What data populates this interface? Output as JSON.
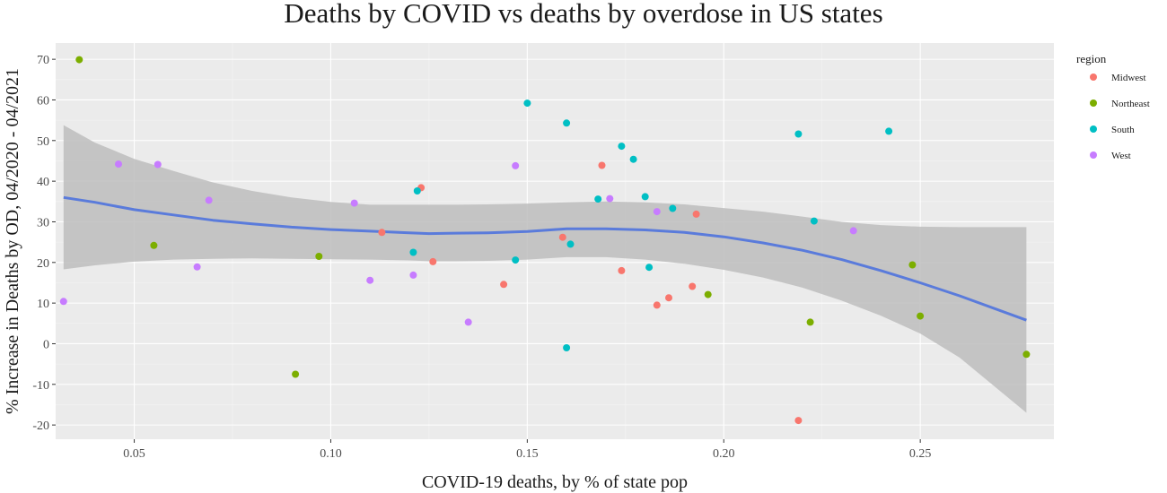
{
  "chart_data": {
    "type": "scatter",
    "title": "Deaths by COVID vs deaths by overdose in US states",
    "xlabel": "COVID-19 deaths, by % of state pop",
    "ylabel": "% Increase in Deaths by OD, 04/2020 - 04/2021",
    "xlim": [
      0.03,
      0.284
    ],
    "ylim": [
      -23.5,
      74
    ],
    "xticks": [
      0.05,
      0.1,
      0.15,
      0.2,
      0.25
    ],
    "xtick_labels": [
      "0.05",
      "0.10",
      "0.15",
      "0.20",
      "0.25"
    ],
    "yticks": [
      -20,
      -10,
      0,
      10,
      20,
      30,
      40,
      50,
      60,
      70
    ],
    "ytick_labels": [
      "-20",
      "-10",
      "0",
      "10",
      "20",
      "30",
      "40",
      "50",
      "60",
      "70"
    ],
    "grid": true,
    "legend": {
      "title": "region",
      "placement": "right"
    },
    "series": [
      {
        "name": "Midwest",
        "color": "#F8766D",
        "points": [
          [
            0.113,
            27.4
          ],
          [
            0.123,
            38.4
          ],
          [
            0.126,
            20.2
          ],
          [
            0.144,
            14.6
          ],
          [
            0.159,
            26.2
          ],
          [
            0.169,
            43.9
          ],
          [
            0.174,
            18.0
          ],
          [
            0.183,
            9.5
          ],
          [
            0.186,
            11.3
          ],
          [
            0.192,
            14.1
          ],
          [
            0.193,
            31.9
          ],
          [
            0.219,
            -18.9
          ]
        ]
      },
      {
        "name": "Northeast",
        "color": "#7CAE00",
        "points": [
          [
            0.036,
            69.9
          ],
          [
            0.055,
            24.2
          ],
          [
            0.091,
            -7.5
          ],
          [
            0.097,
            21.5
          ],
          [
            0.196,
            12.1
          ],
          [
            0.222,
            5.3
          ],
          [
            0.248,
            19.4
          ],
          [
            0.25,
            6.8
          ],
          [
            0.277,
            -2.6
          ]
        ]
      },
      {
        "name": "South",
        "color": "#00BFC4",
        "points": [
          [
            0.121,
            22.5
          ],
          [
            0.122,
            37.6
          ],
          [
            0.147,
            20.6
          ],
          [
            0.15,
            59.2
          ],
          [
            0.16,
            54.3
          ],
          [
            0.16,
            -1.0
          ],
          [
            0.161,
            24.5
          ],
          [
            0.168,
            35.6
          ],
          [
            0.174,
            48.6
          ],
          [
            0.177,
            45.4
          ],
          [
            0.18,
            36.2
          ],
          [
            0.181,
            18.8
          ],
          [
            0.187,
            33.3
          ],
          [
            0.219,
            51.6
          ],
          [
            0.223,
            30.2
          ],
          [
            0.242,
            52.3
          ]
        ]
      },
      {
        "name": "West",
        "color": "#C77CFF",
        "points": [
          [
            0.032,
            10.4
          ],
          [
            0.046,
            44.2
          ],
          [
            0.056,
            44.1
          ],
          [
            0.066,
            18.9
          ],
          [
            0.069,
            35.3
          ],
          [
            0.106,
            34.6
          ],
          [
            0.11,
            15.6
          ],
          [
            0.121,
            16.9
          ],
          [
            0.135,
            5.3
          ],
          [
            0.147,
            43.8
          ],
          [
            0.171,
            35.7
          ],
          [
            0.183,
            32.5
          ],
          [
            0.233,
            27.8
          ]
        ]
      }
    ],
    "smooth": {
      "method": "loess",
      "color": "#5A7BDB",
      "band_color": "#BDBDBD",
      "x": [
        0.032,
        0.04,
        0.05,
        0.06,
        0.07,
        0.08,
        0.09,
        0.1,
        0.11,
        0.12,
        0.125,
        0.13,
        0.14,
        0.15,
        0.16,
        0.17,
        0.18,
        0.19,
        0.2,
        0.21,
        0.22,
        0.23,
        0.24,
        0.25,
        0.26,
        0.277
      ],
      "y": [
        36.0,
        34.8,
        33.0,
        31.7,
        30.4,
        29.5,
        28.7,
        28.1,
        27.7,
        27.3,
        27.1,
        27.2,
        27.3,
        27.6,
        28.3,
        28.3,
        28.0,
        27.4,
        26.3,
        24.8,
        23.0,
        20.7,
        18.0,
        15.0,
        11.8,
        5.8
      ],
      "lower": [
        18.3,
        19.3,
        20.2,
        20.7,
        20.9,
        21.0,
        20.9,
        20.8,
        20.7,
        20.5,
        20.3,
        20.3,
        20.4,
        20.7,
        21.3,
        21.3,
        20.7,
        19.7,
        18.2,
        16.3,
        13.8,
        10.6,
        6.9,
        2.5,
        -3.4,
        -17.0
      ],
      "upper": [
        53.8,
        49.5,
        45.5,
        42.5,
        39.7,
        37.6,
        36.0,
        34.9,
        34.2,
        34.2,
        34.2,
        34.2,
        34.3,
        34.5,
        34.8,
        35.0,
        34.8,
        34.3,
        33.4,
        32.5,
        31.3,
        30.0,
        29.2,
        28.8,
        28.7,
        28.7
      ]
    }
  }
}
